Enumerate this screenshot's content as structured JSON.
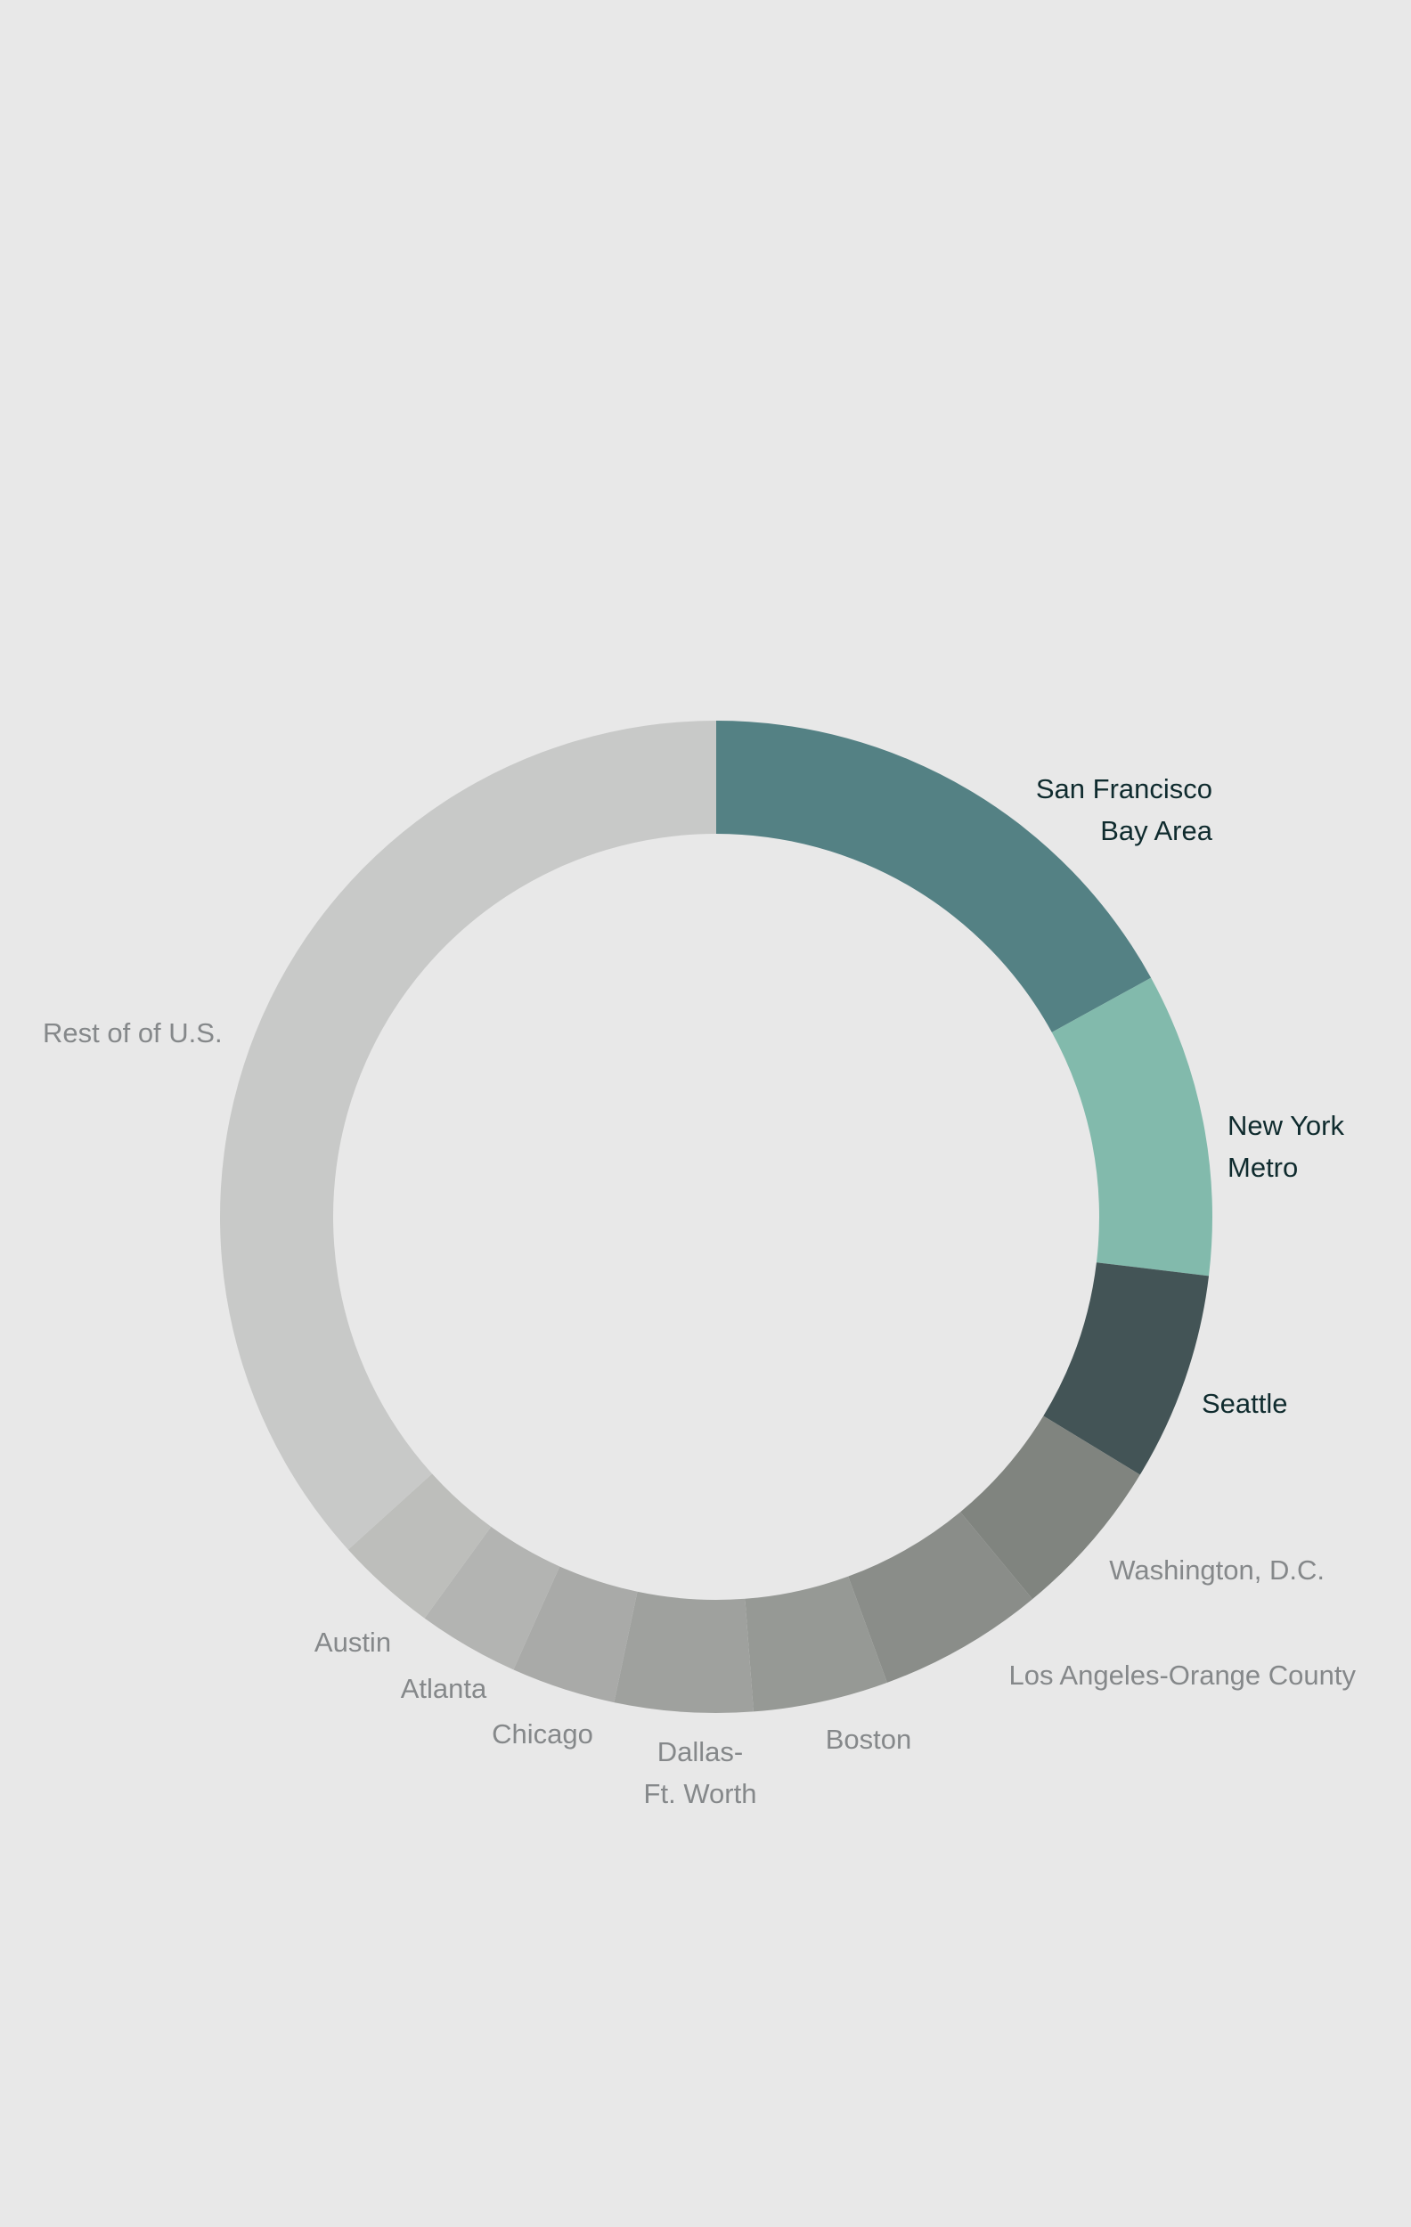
{
  "chart_data": {
    "type": "pie",
    "style": "donut",
    "start_angle": "12 o'clock",
    "direction": "clockwise",
    "unit": "percent (estimated share of ring)",
    "slices": [
      {
        "name": "San Francisco Bay Area",
        "label_lines": [
          "San Francisco",
          "Bay Area"
        ],
        "value": 17.0,
        "color": "#548184",
        "emphasis": true
      },
      {
        "name": "New York Metro",
        "label_lines": [
          "New York",
          "Metro"
        ],
        "value": 9.9,
        "color": "#82baac",
        "emphasis": true
      },
      {
        "name": "Seattle",
        "label_lines": [
          "Seattle"
        ],
        "value": 6.8,
        "color": "#435456",
        "emphasis": true
      },
      {
        "name": "Washington, D.C.",
        "label_lines": [
          "Washington, D.C."
        ],
        "value": 5.3,
        "color": "#80847f",
        "emphasis": false
      },
      {
        "name": "Los Angeles-Orange County",
        "label_lines": [
          "Los Angeles-Orange County"
        ],
        "value": 5.4,
        "color": "#8a8d89",
        "emphasis": false
      },
      {
        "name": "Boston",
        "label_lines": [
          "Boston"
        ],
        "value": 4.4,
        "color": "#969995",
        "emphasis": false
      },
      {
        "name": "Dallas-Ft. Worth",
        "label_lines": [
          "Dallas-",
          "Ft. Worth"
        ],
        "value": 4.5,
        "color": "#9fa19e",
        "emphasis": false
      },
      {
        "name": "Chicago",
        "label_lines": [
          "Chicago"
        ],
        "value": 3.4,
        "color": "#a9aaa8",
        "emphasis": false
      },
      {
        "name": "Atlanta",
        "label_lines": [
          "Atlanta"
        ],
        "value": 3.3,
        "color": "#b3b4b2",
        "emphasis": false
      },
      {
        "name": "Austin",
        "label_lines": [
          "Austin"
        ],
        "value": 3.3,
        "color": "#bdbebb",
        "emphasis": false
      },
      {
        "name": "Rest of of U.S.",
        "label_lines": [
          "Rest of of U.S."
        ],
        "value": 36.7,
        "color": "#c8c9c8",
        "emphasis": false
      }
    ],
    "label_colors": {
      "emphasis": "#0f2b2e",
      "normal": "#85888a"
    },
    "background": "#e8e8e8",
    "title": "",
    "legend": "none (direct labels)"
  }
}
